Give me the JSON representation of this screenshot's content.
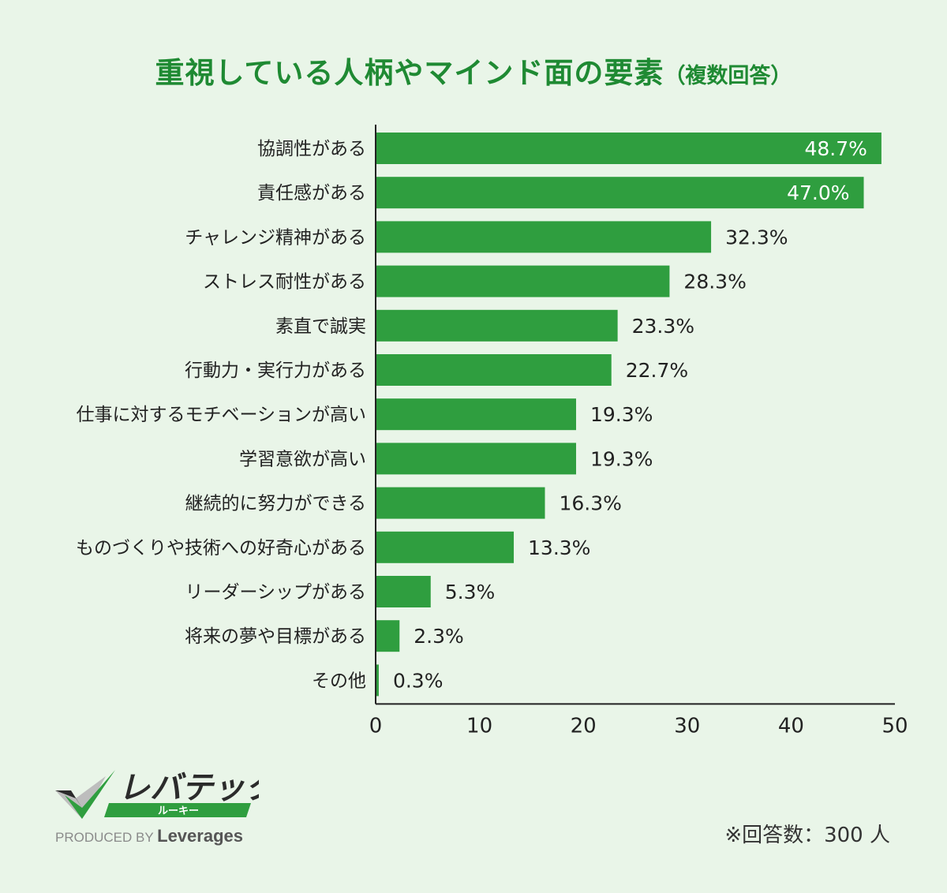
{
  "title": {
    "main": "重視している人柄やマインド面の要素",
    "sub": "（複数回答）"
  },
  "chart_data": {
    "type": "bar",
    "orientation": "horizontal",
    "categories": [
      "協調性がある",
      "責任感がある",
      "チャレンジ精神がある",
      "ストレス耐性がある",
      "素直で誠実",
      "行動力・実行力がある",
      "仕事に対するモチベーションが高い",
      "学習意欲が高い",
      "継続的に努力ができる",
      "ものづくりや技術への好奇心がある",
      "リーダーシップがある",
      "将来の夢や目標がある",
      "その他"
    ],
    "values": [
      48.7,
      47.0,
      32.3,
      28.3,
      23.3,
      22.7,
      19.3,
      19.3,
      16.3,
      13.3,
      5.3,
      2.3,
      0.3
    ],
    "data_labels": [
      "48.7%",
      "47.0%",
      "32.3%",
      "28.3%",
      "23.3%",
      "22.7%",
      "19.3%",
      "19.3%",
      "16.3%",
      "13.3%",
      "5.3%",
      "2.3%",
      "0.3%"
    ],
    "xlim": [
      0,
      50
    ],
    "xticks": [
      "0",
      "10",
      "20",
      "30",
      "40",
      "50"
    ],
    "grid": false,
    "bar_color": "#2f9e3f",
    "label_inside_color": "#ffffff",
    "label_outside_color": "#222222"
  },
  "footer": {
    "logo_text": "レバテック",
    "logo_sub": "ルーキー",
    "produced_by": "PRODUCED BY",
    "company": "Leverages",
    "note": "※回答数：300 人"
  },
  "colors": {
    "background": "#e9f5e8",
    "title": "#1f8a33",
    "logo_dark": "#2b2b2b",
    "logo_green": "#2f9e3f"
  },
  "icons": {
    "logo_mark": "checkmark-logo-icon"
  }
}
